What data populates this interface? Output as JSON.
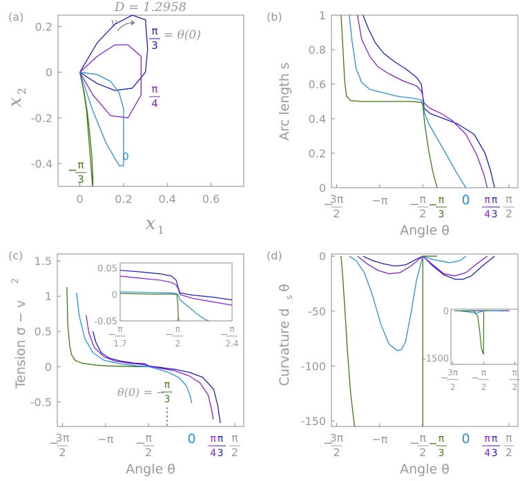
{
  "colors": {
    "dark_blue": "#1a1acc",
    "purple": "#8a1ae6",
    "light_blue": "#2291e8",
    "green": "#3b7a12",
    "gray": "#999999",
    "axis": "#888888"
  },
  "chart_data": [
    {
      "panel": "(a)",
      "type": "line",
      "title": "D = 1.2958",
      "annotation": "v",
      "xlabel": "x",
      "xlabel_sub": "1",
      "ylabel": "x",
      "ylabel_sub": "2",
      "xlim": [
        -0.1,
        0.75
      ],
      "ylim": [
        -0.5,
        0.25
      ],
      "xticks": [
        "0",
        "0.2",
        "0.4",
        "0.6"
      ],
      "yticks": [
        "0.2",
        "0",
        "-0.2",
        "-0.4"
      ],
      "series": [
        {
          "name": "θ(0) = π/3",
          "label_num": "π",
          "label_den": "3",
          "label_rest": "= θ(0)",
          "color": "#1a1acc",
          "x": [
            0.0,
            0.08,
            0.16,
            0.24,
            0.3,
            0.31,
            0.3,
            0.24,
            0.16,
            0.08,
            0.0
          ],
          "y": [
            0.0,
            0.13,
            0.21,
            0.25,
            0.23,
            0.1,
            0.0,
            -0.07,
            -0.08,
            -0.05,
            0.0
          ]
        },
        {
          "name": "θ(0) = π/4",
          "label_num": "π",
          "label_den": "4",
          "color": "#8a1ae6",
          "x": [
            0.0,
            0.08,
            0.16,
            0.22,
            0.28,
            0.28,
            0.22,
            0.14,
            0.06,
            0.0
          ],
          "y": [
            0.0,
            0.07,
            0.12,
            0.12,
            0.07,
            -0.1,
            -0.2,
            -0.19,
            -0.1,
            0.0
          ]
        },
        {
          "name": "θ(0) = 0",
          "label_num": "0",
          "color": "#2291e8",
          "x": [
            0.0,
            0.08,
            0.14,
            0.18,
            0.2,
            0.2,
            0.18,
            0.12,
            0.06,
            0.0
          ],
          "y": [
            0.0,
            -0.01,
            -0.04,
            -0.09,
            -0.16,
            -0.41,
            -0.41,
            -0.31,
            -0.17,
            0.0
          ]
        },
        {
          "name": "θ(0) = −π/3",
          "label_num": "π",
          "label_den": "3",
          "label_sign": "−",
          "color": "#3b7a12",
          "x": [
            0.0,
            0.02,
            0.035,
            0.045,
            0.055,
            0.06,
            0.058,
            0.05,
            0.04,
            0.03,
            0.015,
            0.0
          ],
          "y": [
            0.0,
            -0.09,
            -0.18,
            -0.27,
            -0.37,
            -0.48,
            -0.5,
            -0.4,
            -0.28,
            -0.16,
            -0.07,
            0.0
          ]
        }
      ]
    },
    {
      "panel": "(b)",
      "type": "line",
      "xlabel": "Angle θ",
      "ylabel": "Arc length s",
      "xlim": [
        -4.9,
        1.9
      ],
      "ylim": [
        0,
        1
      ],
      "xticks": [
        {
          "sign": "−",
          "num": "3π",
          "den": "2",
          "value": -4.712
        },
        {
          "text": "−π",
          "value": -3.1416
        },
        {
          "sign": "−",
          "num": "π",
          "den": "2",
          "value": -1.5708
        },
        {
          "text": "π",
          "den": "2",
          "value": 1.5708
        }
      ],
      "colored_xticks": [
        {
          "sign": "−",
          "num": "π",
          "den": "3",
          "value": -1.047,
          "color": "#3b7a12"
        },
        {
          "text": "0",
          "value": 0,
          "color": "#2291e8"
        },
        {
          "num": "π",
          "den": "4",
          "value": 0.785,
          "color": "#8a1ae6"
        },
        {
          "num": "π",
          "den": "3",
          "value": 1.047,
          "color": "#1a1acc"
        }
      ],
      "yticks": [
        "1",
        "0.8",
        "0.6",
        "0.4",
        "0.2",
        "0"
      ],
      "series": [
        {
          "name": "π/3",
          "color": "#1a1acc",
          "x": [
            -3.75,
            -3.55,
            -3.3,
            -3.0,
            -2.6,
            -2.2,
            -1.8,
            -1.62,
            -1.57,
            -1.52,
            -1.3,
            -0.8,
            -0.3,
            0.3,
            0.7,
            0.9,
            1.047
          ],
          "y": [
            1.0,
            0.92,
            0.84,
            0.78,
            0.73,
            0.69,
            0.64,
            0.6,
            0.53,
            0.46,
            0.43,
            0.4,
            0.37,
            0.31,
            0.2,
            0.1,
            0.0
          ]
        },
        {
          "name": "π/4",
          "color": "#8a1ae6",
          "x": [
            -3.95,
            -3.8,
            -3.5,
            -3.2,
            -2.8,
            -2.3,
            -1.8,
            -1.62,
            -1.57,
            -1.52,
            -1.3,
            -0.9,
            -0.5,
            0.0,
            0.4,
            0.65,
            0.785
          ],
          "y": [
            1.0,
            0.86,
            0.76,
            0.7,
            0.66,
            0.62,
            0.59,
            0.56,
            0.53,
            0.49,
            0.46,
            0.43,
            0.39,
            0.31,
            0.19,
            0.08,
            0.0
          ]
        },
        {
          "name": "0",
          "color": "#2291e8",
          "x": [
            -4.25,
            -4.15,
            -4.0,
            -3.8,
            -3.5,
            -3.0,
            -2.5,
            -2.0,
            -1.65,
            -1.57,
            -1.5,
            -1.35,
            -1.1,
            -0.7,
            -0.35,
            0.0
          ],
          "y": [
            1.0,
            0.85,
            0.69,
            0.61,
            0.57,
            0.55,
            0.53,
            0.52,
            0.51,
            0.5,
            0.43,
            0.37,
            0.3,
            0.19,
            0.09,
            0.0
          ]
        },
        {
          "name": "−π/3",
          "color": "#3b7a12",
          "x": [
            -4.55,
            -4.48,
            -4.42,
            -4.35,
            -4.2,
            -3.8,
            -3.0,
            -2.0,
            -1.62,
            -1.57,
            -1.5,
            -1.35,
            -1.2,
            -1.047
          ],
          "y": [
            1.0,
            0.8,
            0.62,
            0.53,
            0.505,
            0.5,
            0.5,
            0.5,
            0.495,
            0.48,
            0.37,
            0.21,
            0.09,
            0.0
          ]
        }
      ]
    },
    {
      "panel": "(c)",
      "type": "line",
      "xlabel": "Angle θ",
      "ylabel": "Tension σ − v²",
      "ylabel_main": "Tension σ − v",
      "ylabel_sup": "2",
      "annotation": "θ(0) = −",
      "annotation_num": "π",
      "annotation_den": "3",
      "xlim": [
        -4.9,
        1.9
      ],
      "ylim": [
        -0.85,
        1.6
      ],
      "xticks": [
        {
          "sign": "−",
          "num": "3π",
          "den": "2",
          "value": -4.712
        },
        {
          "text": "−π",
          "value": -3.1416
        },
        {
          "sign": "−",
          "num": "π",
          "den": "2",
          "value": -1.5708
        },
        {
          "text": "π",
          "den": "2",
          "value": 1.5708
        }
      ],
      "colored_xticks": [
        {
          "text": "0",
          "value": 0,
          "color": "#2291e8"
        },
        {
          "num": "π",
          "den": "4",
          "value": 0.785,
          "color": "#8a1ae6"
        },
        {
          "num": "π",
          "den": "3",
          "value": 1.047,
          "color": "#1a1acc"
        }
      ],
      "yticks": [
        "1.5",
        "1",
        "0.5",
        "0",
        "-0.5"
      ],
      "series": [
        {
          "name": "π/3",
          "color": "#1a1acc",
          "x": [
            -3.6,
            -3.5,
            -3.3,
            -3.0,
            -2.6,
            -2.1,
            -1.7,
            -1.57,
            -1.2,
            -0.6,
            -0.1,
            0.4,
            0.8,
            0.95,
            1.047
          ],
          "y": [
            0.5,
            0.35,
            0.2,
            0.12,
            0.08,
            0.05,
            0.04,
            0.01,
            -0.01,
            -0.04,
            -0.08,
            -0.15,
            -0.32,
            -0.55,
            -0.8
          ]
        },
        {
          "name": "π/4",
          "color": "#8a1ae6",
          "x": [
            -3.85,
            -3.75,
            -3.55,
            -3.2,
            -2.8,
            -2.3,
            -1.8,
            -1.57,
            -1.2,
            -0.6,
            -0.1,
            0.3,
            0.6,
            0.75,
            0.785
          ],
          "y": [
            0.73,
            0.48,
            0.27,
            0.14,
            0.08,
            0.05,
            0.03,
            0.01,
            -0.02,
            -0.06,
            -0.13,
            -0.23,
            -0.4,
            -0.65,
            -0.75
          ]
        },
        {
          "name": "0",
          "color": "#2291e8",
          "x": [
            -4.2,
            -4.1,
            -3.9,
            -3.6,
            -3.2,
            -2.6,
            -2.0,
            -1.57,
            -1.2,
            -0.8,
            -0.45,
            -0.2,
            -0.05,
            0.0
          ],
          "y": [
            1.05,
            0.72,
            0.4,
            0.2,
            0.09,
            0.04,
            0.01,
            0.0,
            -0.04,
            -0.09,
            -0.16,
            -0.27,
            -0.42,
            -0.52
          ]
        },
        {
          "name": "−π/3",
          "color": "#3b7a12",
          "x": [
            -4.55,
            -4.52,
            -4.45,
            -4.38,
            -4.25,
            -4.0,
            -3.5,
            -3.0,
            -2.5,
            -2.0,
            -1.57,
            -1.3,
            -1.1,
            -1.047
          ],
          "y": [
            1.13,
            0.6,
            0.3,
            0.17,
            0.09,
            0.05,
            0.02,
            0.01,
            0.005,
            0.0,
            0.0,
            -0.005,
            -0.01,
            -0.02
          ]
        }
      ],
      "inset": {
        "xlim": [
          -1.848,
          -1.309
        ],
        "ylim": [
          -0.05,
          0.06
        ],
        "xticks": [
          {
            "sign": "−",
            "num": "π",
            "den": "1.7",
            "value": -1.848
          },
          {
            "sign": "−",
            "num": "π",
            "den": "2",
            "value": -1.5708
          },
          {
            "sign": "−",
            "num": "π",
            "den": "2.4",
            "value": -1.309
          }
        ],
        "yticks": [
          "0.05",
          "0",
          "-0.05"
        ],
        "series": [
          {
            "name": "π/3",
            "color": "#1a1acc",
            "x": [
              -1.848,
              -1.75,
              -1.65,
              -1.6,
              -1.578,
              -1.57,
              -1.56,
              -1.5,
              -1.4,
              -1.309
            ],
            "y": [
              0.046,
              0.043,
              0.039,
              0.035,
              0.027,
              0.015,
              0.003,
              -0.001,
              -0.005,
              -0.01
            ]
          },
          {
            "name": "π/4",
            "color": "#8a1ae6",
            "x": [
              -1.848,
              -1.75,
              -1.65,
              -1.6,
              -1.578,
              -1.57,
              -1.56,
              -1.5,
              -1.4,
              -1.309
            ],
            "y": [
              0.035,
              0.031,
              0.027,
              0.023,
              0.018,
              0.012,
              0.0,
              -0.007,
              -0.014,
              -0.02
            ]
          },
          {
            "name": "0",
            "color": "#2291e8",
            "x": [
              -1.848,
              -1.7,
              -1.6,
              -1.578,
              -1.57,
              -1.56,
              -1.52,
              -1.48,
              -1.44,
              -1.42
            ],
            "y": [
              0.005,
              0.004,
              0.003,
              0.002,
              0.0,
              -0.01,
              -0.023,
              -0.036,
              -0.047,
              -0.05
            ]
          },
          {
            "name": "−π/3",
            "color": "#3b7a12",
            "x": [
              -1.848,
              -1.7,
              -1.6,
              -1.575,
              -1.57,
              -1.568,
              -1.566
            ],
            "y": [
              0.002,
              0.001,
              0.001,
              0.0,
              -0.02,
              -0.04,
              -0.05
            ]
          }
        ]
      }
    },
    {
      "panel": "(d)",
      "type": "line",
      "xlabel": "Angle θ",
      "ylabel": "Curvature d_s θ",
      "ylabel_main": "Curvature d",
      "ylabel_sub": "s",
      "ylabel_end": "θ",
      "xlim": [
        -4.9,
        1.9
      ],
      "ylim": [
        -155,
        2
      ],
      "xticks": [
        {
          "sign": "−",
          "num": "3π",
          "den": "2",
          "value": -4.712
        },
        {
          "text": "−π",
          "value": -3.1416
        },
        {
          "sign": "−",
          "num": "π",
          "den": "2",
          "value": -1.5708
        },
        {
          "text": "π",
          "den": "2",
          "value": 1.5708
        }
      ],
      "colored_xticks": [
        {
          "sign": "−",
          "num": "π",
          "den": "3",
          "value": -1.047,
          "color": "#3b7a12"
        },
        {
          "text": "0",
          "value": 0,
          "color": "#2291e8"
        },
        {
          "num": "π",
          "den": "4",
          "value": 0.785,
          "color": "#8a1ae6"
        },
        {
          "num": "π",
          "den": "3",
          "value": 1.047,
          "color": "#1a1acc"
        }
      ],
      "yticks": [
        "0",
        "-50",
        "-100",
        "-150"
      ],
      "series": [
        {
          "name": "π/3",
          "color": "#1a1acc",
          "x": [
            -3.75,
            -3.4,
            -3.0,
            -2.6,
            -2.2,
            -1.9,
            -1.57,
            -1.2,
            -0.8,
            -0.4,
            -0.1,
            0.2,
            0.6,
            1.047
          ],
          "y": [
            0,
            -4,
            -7,
            -9,
            -8,
            -4,
            0,
            -9,
            -17,
            -21,
            -21,
            -18,
            -9,
            0
          ]
        },
        {
          "name": "π/4",
          "color": "#8a1ae6",
          "x": [
            -3.95,
            -3.6,
            -3.2,
            -2.8,
            -2.4,
            -2.0,
            -1.57,
            -1.2,
            -0.8,
            -0.4,
            0.0,
            0.4,
            0.785
          ],
          "y": [
            0,
            -7,
            -13,
            -16,
            -15,
            -9,
            0,
            -8,
            -16,
            -18,
            -15,
            -7,
            0
          ]
        },
        {
          "name": "0",
          "color": "#2291e8",
          "x": [
            -4.25,
            -4.0,
            -3.7,
            -3.4,
            -3.1,
            -2.8,
            -2.5,
            -2.35,
            -2.2,
            -2.0,
            -1.8,
            -1.57,
            -1.2,
            -0.6,
            -0.2,
            0.0
          ],
          "y": [
            0,
            -4,
            -15,
            -36,
            -62,
            -80,
            -86,
            -85,
            -78,
            -52,
            -22,
            0,
            -3,
            -6,
            -4,
            0
          ]
        },
        {
          "name": "−π/3",
          "color": "#3b7a12",
          "x": [
            -4.55,
            -4.5,
            -4.42,
            -4.32,
            -4.2,
            -4.06,
            -4.0
          ],
          "y": [
            0,
            -15,
            -45,
            -85,
            -125,
            -155,
            -155
          ]
        },
        {
          "name": "−π/3 (tail)",
          "color": "#3b7a12",
          "x": [
            -1.57,
            -1.57,
            -1.3,
            -1.047
          ],
          "y": [
            -155,
            0,
            0,
            0
          ]
        }
      ],
      "inset": {
        "xlim": [
          -4.9,
          1.9
        ],
        "ylim": [
          -1700,
          50
        ],
        "xticks": [
          {
            "sign": "−",
            "num": "3π",
            "den": "2",
            "value": -4.712
          },
          {
            "sign": "−",
            "num": "π",
            "den": "2",
            "value": -1.5708
          },
          {
            "text": "π",
            "den": "2",
            "value": 1.5708
          }
        ],
        "yticks": [
          "0",
          "-1500"
        ],
        "series": [
          {
            "name": "π/3",
            "color": "#1a1acc",
            "x": [
              -3.75,
              -1.57,
              1.047
            ],
            "y": [
              0,
              0,
              0
            ]
          },
          {
            "name": "0",
            "color": "#2291e8",
            "x": [
              -4.25,
              -3.0,
              -2.4,
              -1.57,
              0.0
            ],
            "y": [
              0,
              -40,
              -86,
              0,
              0
            ]
          },
          {
            "name": "−π/3",
            "color": "#3b7a12",
            "x": [
              -4.55,
              -2.6,
              -2.2,
              -2.0,
              -1.8,
              -1.6,
              -1.57,
              -1.047
            ],
            "y": [
              0,
              -10,
              -150,
              -600,
              -1200,
              -1380,
              0,
              0
            ]
          }
        ]
      }
    }
  ]
}
